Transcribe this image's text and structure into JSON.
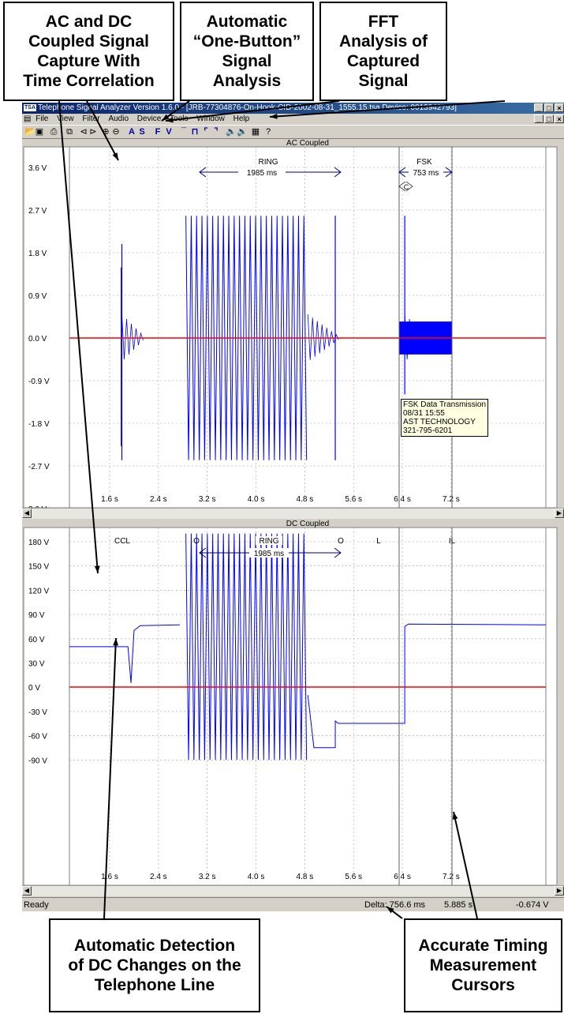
{
  "callouts": {
    "ac_dc": "AC and DC\nCoupled Signal\nCapture With\nTime Correlation",
    "one_button": "Automatic\n“One-Button”\nSignal\nAnalysis",
    "fft": "FFT\nAnalysis of\nCaptured\nSignal",
    "dc_detect": "Automatic Detection\nof DC Changes on the\nTelephone Line",
    "cursors": "Accurate Timing\nMeasurement\nCursors"
  },
  "window": {
    "app_icon": "TSA",
    "title": "Telephone Signal Analyzer Version 1.6.0 - [JRB-77304876-On-Hook-CID-2002-08-31_1555.15.tsa  Device: 0013942793]",
    "menu": [
      "File",
      "View",
      "Filter",
      "Audio",
      "Device",
      "Tools",
      "Window",
      "Help"
    ]
  },
  "toolbar": {
    "analysis_a": "A",
    "analysis_s": "S",
    "fft_f": "F",
    "fft_v": "V",
    "icons": [
      "open-icon",
      "save-icon",
      "print-icon",
      "copy-icon",
      "scroll-left-icon",
      "scroll-right-icon",
      "zoom-in-icon",
      "zoom-out-icon",
      "edge-high-icon",
      "pulse-icon",
      "falling-edge-icon",
      "rising-edge-icon",
      "speaker-icon",
      "speaker-volume-icon",
      "export-icon",
      "help-icon"
    ]
  },
  "ac_pane": {
    "title": "AC Coupled",
    "y_ticks": [
      "3.6 V",
      "2.7 V",
      "1.8 V",
      "0.9 V",
      "0.0 V",
      "-0.9 V",
      "-1.8 V",
      "-2.7 V",
      "3.6 V"
    ],
    "x_ticks": [
      "1.6 s",
      "2.4 s",
      "3.2 s",
      "4.0 s",
      "4.8 s",
      "5.6 s",
      "6.4 s",
      "7.2 s"
    ],
    "ring_label": "RING",
    "ring_duration": "1985 ms",
    "fsk_label": "FSK",
    "fsk_duration": "753 ms",
    "cursor_marker": "C",
    "tooltip": [
      "FSK Data Transmission",
      "08/31 15:55",
      "AST TECHNOLOGY",
      "321-795-6201"
    ]
  },
  "dc_pane": {
    "title": "DC Coupled",
    "y_ticks": [
      "180 V",
      "150 V",
      "120 V",
      "90 V",
      "60 V",
      "30 V",
      "0 V",
      "-30 V",
      "-60 V",
      "-90 V"
    ],
    "x_ticks": [
      "1.6 s",
      "2.4 s",
      "3.2 s",
      "4.0 s",
      "4.8 s",
      "5.6 s",
      "6.4 s",
      "7.2 s"
    ],
    "events": [
      "CCL",
      "O",
      "RING",
      "O",
      "L",
      "IL"
    ],
    "ring_duration": "1985 ms"
  },
  "status": {
    "ready": "Ready",
    "delta": "Delta: 756.6 ms",
    "time": "5.885 s",
    "voltage": "-0.674 V"
  },
  "colors": {
    "trace": "#0000ff",
    "zero_line": "#ff0000",
    "annotation": "#000080",
    "grid": "#a0a0a0",
    "tooltip_bg": "#ffffe1"
  }
}
